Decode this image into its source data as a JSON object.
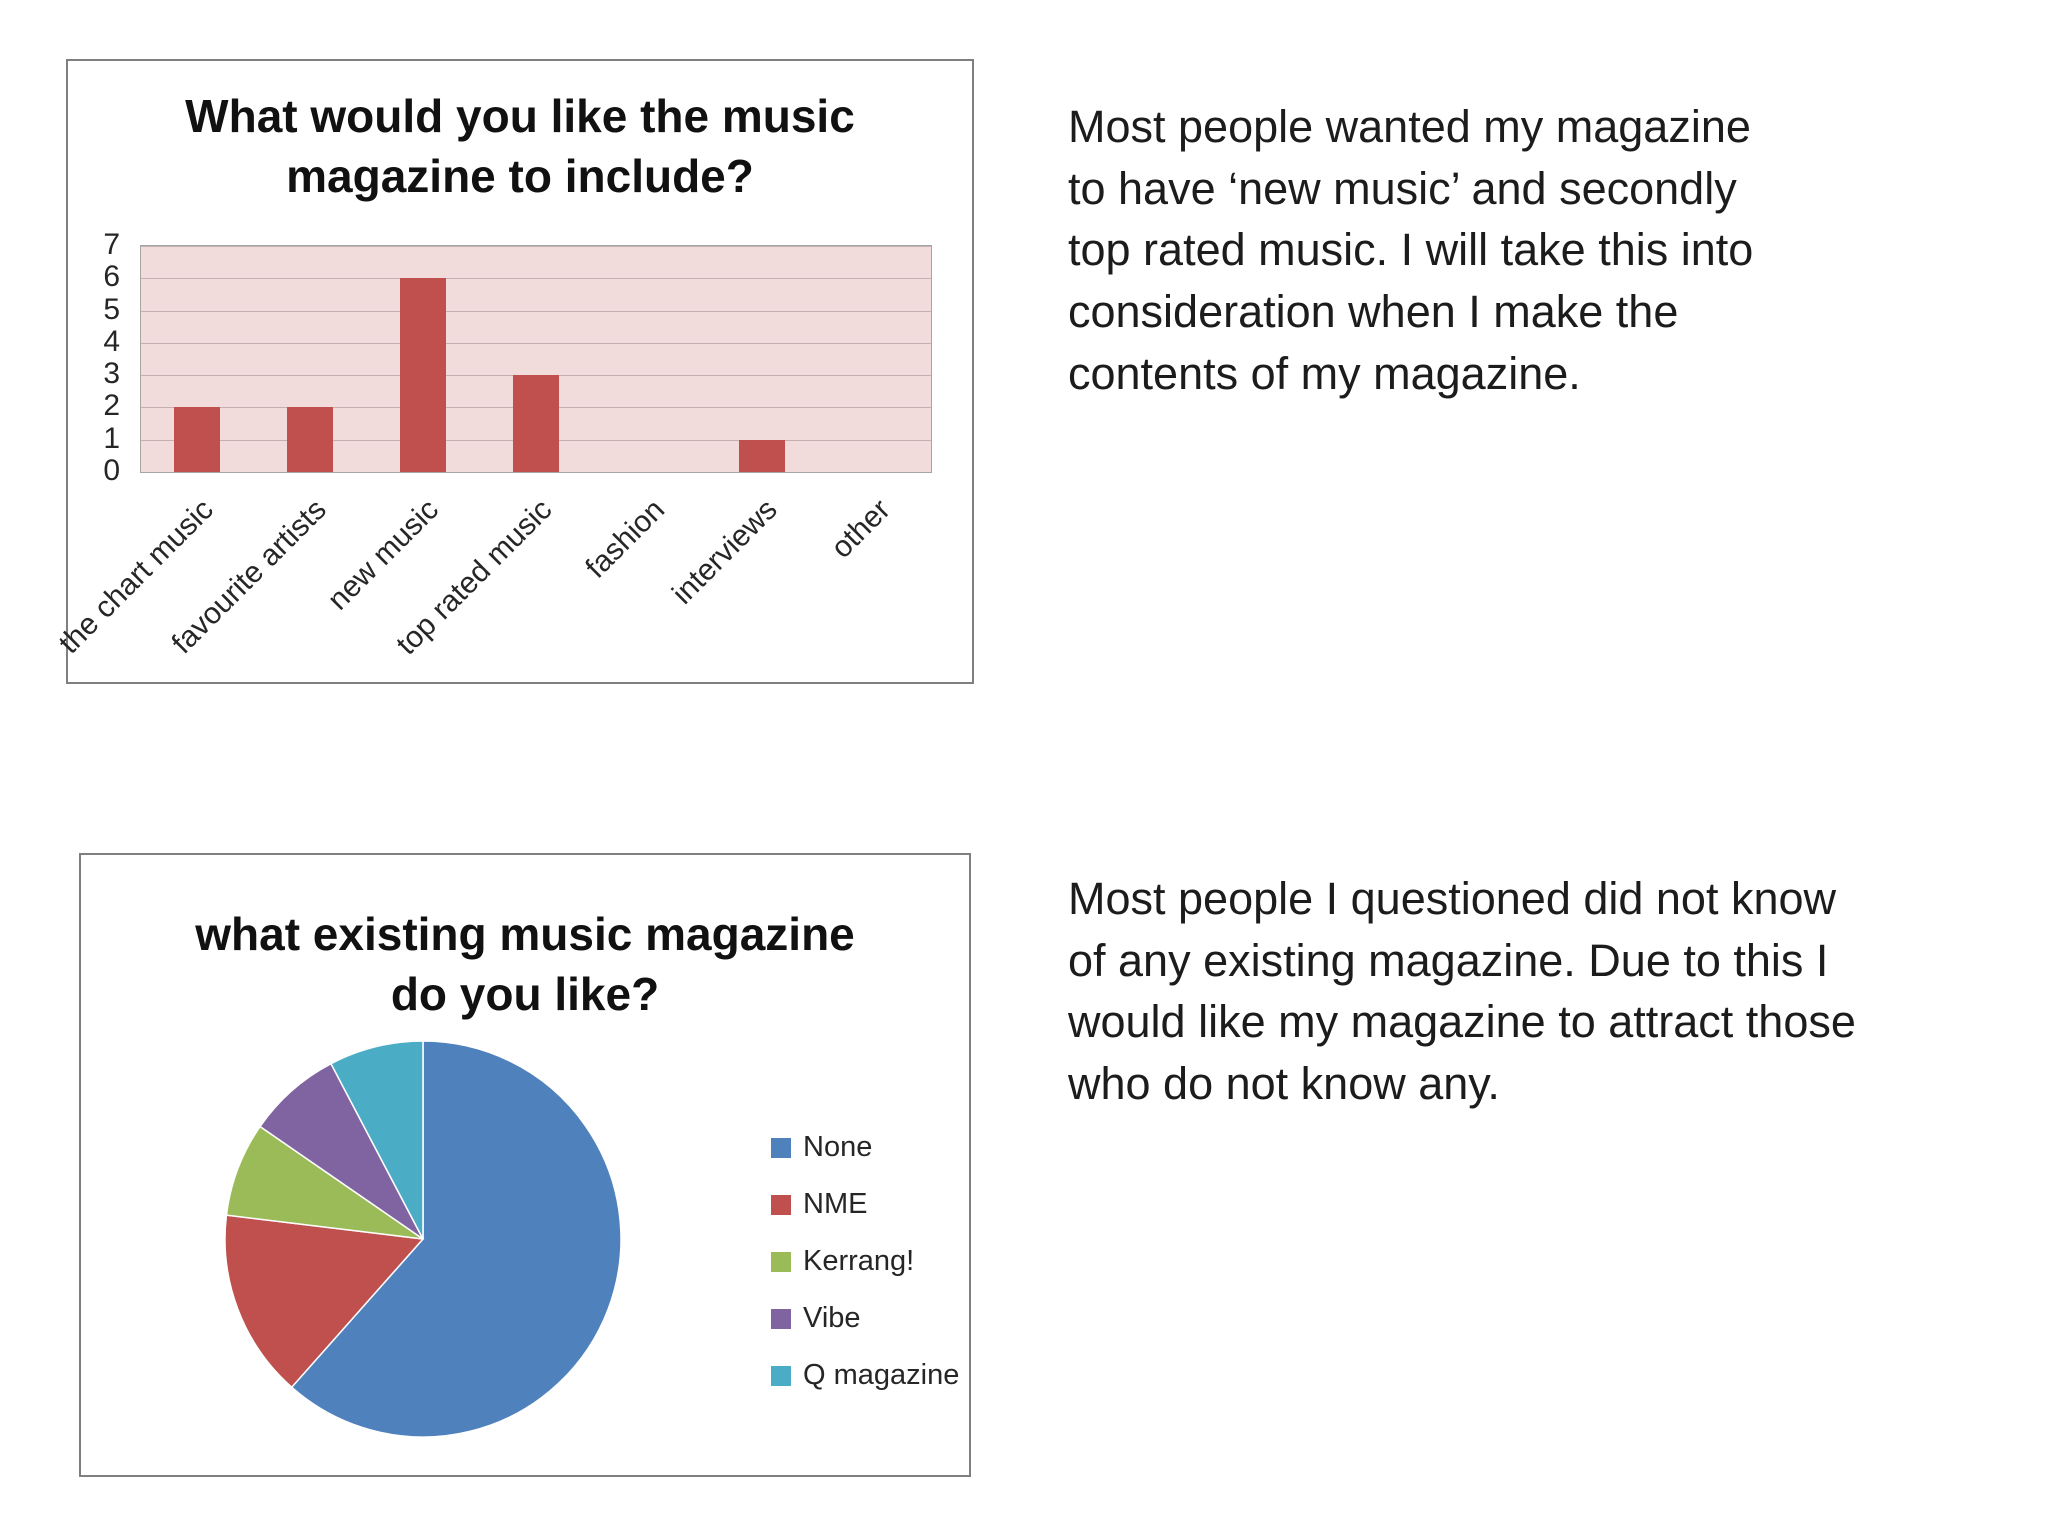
{
  "commentary": {
    "bar": "Most people wanted my magazine to have ‘new music’ and secondly top rated music. I will take this into consideration when I make the contents of my magazine.",
    "pie": "Most people I questioned did not know of any existing magazine. Due to this I would like my magazine to attract those who do not know any."
  },
  "chart_data": [
    {
      "type": "bar",
      "title": "What would you like the music magazine to include?",
      "categories": [
        "the chart music",
        "favourite artists",
        "new music",
        "top rated music",
        "fashion",
        "interviews",
        "other"
      ],
      "values": [
        2,
        2,
        6,
        3,
        0,
        1,
        0
      ],
      "xlabel": "",
      "ylabel": "",
      "ylim": [
        0,
        7
      ],
      "yticks": [
        0,
        1,
        2,
        3,
        4,
        5,
        6,
        7
      ],
      "grid": true,
      "legend": "none",
      "bar_color": "#C0504D",
      "plot_bg": "#F2DCDB"
    },
    {
      "type": "pie",
      "title": "what existing music magazine do you like?",
      "categories": [
        "None",
        "NME",
        "Kerrang!",
        "Vibe",
        "Q magazine"
      ],
      "values": [
        8,
        2,
        1,
        1,
        1
      ],
      "colors": [
        "#4F81BD",
        "#C0504D",
        "#9BBB59",
        "#8064A2",
        "#4BACC6"
      ],
      "legend_position": "right",
      "start_angle_deg": -90,
      "direction": "clockwise"
    }
  ]
}
